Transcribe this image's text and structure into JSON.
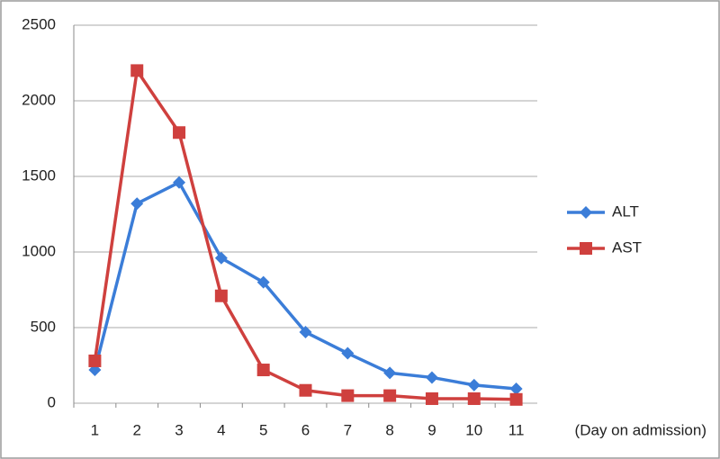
{
  "chart_data": {
    "type": "line",
    "x_label": "(Day on admission)",
    "categories": [
      "1",
      "2",
      "3",
      "4",
      "5",
      "6",
      "7",
      "8",
      "9",
      "10",
      "11"
    ],
    "series": [
      {
        "name": "ALT",
        "color": "#3b7dd8",
        "marker": "diamond",
        "values": [
          220,
          1320,
          1460,
          960,
          800,
          470,
          330,
          200,
          170,
          120,
          95
        ]
      },
      {
        "name": "AST",
        "color": "#cf403e",
        "marker": "square",
        "values": [
          280,
          2200,
          1790,
          710,
          220,
          85,
          50,
          50,
          30,
          30,
          25
        ]
      }
    ],
    "ylim": [
      0,
      2500
    ],
    "yticks": [
      0,
      500,
      1000,
      1500,
      2000,
      2500
    ],
    "grid": true,
    "legend": "right"
  }
}
